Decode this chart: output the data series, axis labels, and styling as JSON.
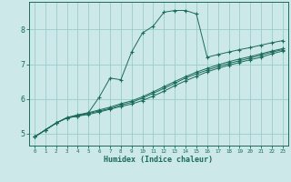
{
  "background_color": "#cce8e8",
  "grid_color": "#99cccc",
  "line_color": "#1a6b5a",
  "xlabel": "Humidex (Indice chaleur)",
  "xlim": [
    -0.5,
    23.5
  ],
  "ylim": [
    4.65,
    8.8
  ],
  "yticks": [
    5,
    6,
    7,
    8
  ],
  "xticks": [
    0,
    1,
    2,
    3,
    4,
    5,
    6,
    7,
    8,
    9,
    10,
    11,
    12,
    13,
    14,
    15,
    16,
    17,
    18,
    19,
    20,
    21,
    22,
    23
  ],
  "line1_x": [
    0,
    1,
    2,
    3,
    4,
    5,
    6,
    7,
    8,
    9,
    10,
    11,
    12,
    13,
    14,
    15,
    16,
    17,
    18,
    19,
    20,
    21,
    22,
    23
  ],
  "line1_y": [
    4.9,
    5.1,
    5.3,
    5.45,
    5.5,
    5.55,
    5.62,
    5.7,
    5.78,
    5.85,
    5.95,
    6.08,
    6.22,
    6.38,
    6.52,
    6.65,
    6.78,
    6.88,
    6.97,
    7.05,
    7.13,
    7.2,
    7.3,
    7.38
  ],
  "line2_x": [
    0,
    1,
    2,
    3,
    4,
    5,
    6,
    7,
    8,
    9,
    10,
    11,
    12,
    13,
    14,
    15,
    16,
    17,
    18,
    19,
    20,
    21,
    22,
    23
  ],
  "line2_y": [
    4.9,
    5.1,
    5.3,
    5.45,
    5.52,
    5.58,
    5.65,
    5.72,
    5.82,
    5.9,
    6.02,
    6.16,
    6.3,
    6.45,
    6.6,
    6.72,
    6.83,
    6.93,
    7.02,
    7.1,
    7.18,
    7.26,
    7.35,
    7.42
  ],
  "line3_x": [
    0,
    1,
    2,
    3,
    4,
    5,
    6,
    7,
    8,
    9,
    10,
    11,
    12,
    13,
    14,
    15,
    16,
    17,
    18,
    19,
    20,
    21,
    22,
    23
  ],
  "line3_y": [
    4.9,
    5.1,
    5.3,
    5.46,
    5.54,
    5.6,
    5.68,
    5.76,
    5.86,
    5.94,
    6.06,
    6.2,
    6.35,
    6.5,
    6.64,
    6.77,
    6.88,
    6.98,
    7.07,
    7.15,
    7.22,
    7.3,
    7.38,
    7.45
  ],
  "curve_x": [
    0,
    1,
    2,
    3,
    4,
    5,
    6,
    7,
    8,
    9,
    10,
    11,
    12,
    13,
    14,
    15,
    16,
    17,
    18,
    19,
    20,
    21,
    22,
    23
  ],
  "curve_y": [
    4.9,
    5.1,
    5.3,
    5.45,
    5.5,
    5.6,
    6.05,
    6.6,
    6.55,
    7.35,
    7.9,
    8.1,
    8.5,
    8.55,
    8.55,
    8.45,
    7.2,
    7.28,
    7.35,
    7.42,
    7.48,
    7.55,
    7.62,
    7.68
  ]
}
